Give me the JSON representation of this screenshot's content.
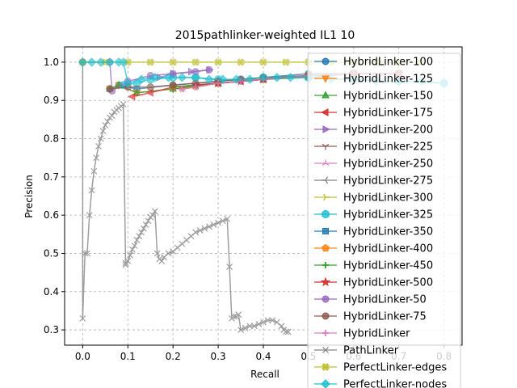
{
  "chart_data": {
    "type": "line",
    "title": "2015pathlinker-weighted IL1 10",
    "xlabel": "Recall",
    "ylabel": "Precision",
    "xlim": [
      -0.04,
      0.84
    ],
    "ylim": [
      0.26,
      1.04
    ],
    "grid": true,
    "legend_position": "right, overlapping plot",
    "x_ticks": [
      "0.0",
      "0.1",
      "0.2",
      "0.3",
      "0.4",
      "0.5",
      "0.6",
      "0.7",
      "0.8"
    ],
    "y_ticks": [
      "0.3",
      "0.4",
      "0.5",
      "0.6",
      "0.7",
      "0.8",
      "0.9",
      "1.0"
    ],
    "series": [
      {
        "name": "HybridLinker-100",
        "color": "#1f77b4",
        "marker": "circle",
        "x": [
          0.06,
          0.08,
          0.12,
          0.2,
          0.3,
          0.4,
          0.5,
          0.6,
          0.7
        ],
        "y": [
          0.93,
          0.94,
          0.93,
          0.94,
          0.95,
          0.96,
          0.97,
          0.97,
          0.97
        ]
      },
      {
        "name": "HybridLinker-125",
        "color": "#ff7f0e",
        "marker": "triangle-down",
        "x": [
          0.06,
          0.08,
          0.12,
          0.2,
          0.3,
          0.4,
          0.5,
          0.6,
          0.7
        ],
        "y": [
          0.93,
          0.94,
          0.92,
          0.93,
          0.945,
          0.955,
          0.965,
          0.97,
          0.97
        ]
      },
      {
        "name": "HybridLinker-150",
        "color": "#2ca02c",
        "marker": "triangle-up",
        "x": [
          0.06,
          0.08,
          0.12,
          0.2,
          0.3,
          0.4,
          0.5,
          0.6,
          0.7
        ],
        "y": [
          0.93,
          0.94,
          0.92,
          0.93,
          0.945,
          0.955,
          0.96,
          0.97,
          0.97
        ]
      },
      {
        "name": "HybridLinker-175",
        "color": "#d62728",
        "marker": "triangle-left",
        "x": [
          0.11,
          0.15,
          0.2,
          0.25,
          0.3,
          0.35,
          0.4,
          0.5,
          0.6,
          0.7
        ],
        "y": [
          0.91,
          0.92,
          0.935,
          0.94,
          0.945,
          0.95,
          0.955,
          0.965,
          0.97,
          0.97
        ]
      },
      {
        "name": "HybridLinker-200",
        "color": "#9467bd",
        "marker": "triangle-right",
        "x": [
          0.17,
          0.2,
          0.24,
          0.28
        ],
        "y": [
          0.96,
          0.97,
          0.975,
          0.98
        ]
      },
      {
        "name": "HybridLinker-225",
        "color": "#8c564b",
        "marker": "tri-down",
        "x": [
          0.2,
          0.25,
          0.3,
          0.35,
          0.4,
          0.5,
          0.6,
          0.7
        ],
        "y": [
          0.93,
          0.935,
          0.945,
          0.95,
          0.955,
          0.965,
          0.97,
          0.97
        ]
      },
      {
        "name": "HybridLinker-250",
        "color": "#e377c2",
        "marker": "tri-up",
        "x": [
          0.22,
          0.25,
          0.3,
          0.35,
          0.4,
          0.5,
          0.6,
          0.7
        ],
        "y": [
          0.93,
          0.935,
          0.945,
          0.95,
          0.955,
          0.965,
          0.97,
          0.97
        ]
      },
      {
        "name": "HybridLinker-275",
        "color": "#7f7f7f",
        "marker": "tri-left",
        "x": [
          0.22,
          0.25,
          0.3,
          0.35,
          0.4,
          0.5,
          0.6,
          0.7
        ],
        "y": [
          0.93,
          0.935,
          0.945,
          0.95,
          0.955,
          0.965,
          0.97,
          0.97
        ]
      },
      {
        "name": "HybridLinker-300",
        "color": "#bcbd22",
        "marker": "tri-right",
        "x": [
          0.22,
          0.25,
          0.3,
          0.35,
          0.4,
          0.5,
          0.6,
          0.7
        ],
        "y": [
          0.93,
          0.935,
          0.945,
          0.95,
          0.955,
          0.965,
          0.97,
          0.97
        ]
      },
      {
        "name": "HybridLinker-325",
        "color": "#17becf",
        "marker": "octagon",
        "x": [
          0.09,
          0.12,
          0.15,
          0.2,
          0.25,
          0.3,
          0.35,
          0.4,
          0.5,
          0.6,
          0.7,
          0.8
        ],
        "y": [
          0.94,
          0.945,
          0.955,
          0.96,
          0.96,
          0.955,
          0.955,
          0.96,
          0.96,
          0.955,
          0.95,
          0.945
        ]
      },
      {
        "name": "HybridLinker-350",
        "color": "#1f77b4",
        "marker": "square",
        "x": [
          0.2,
          0.3,
          0.4,
          0.5,
          0.6,
          0.7
        ],
        "y": [
          0.935,
          0.945,
          0.955,
          0.965,
          0.97,
          0.97
        ]
      },
      {
        "name": "HybridLinker-400",
        "color": "#ff7f0e",
        "marker": "pentagon",
        "x": [
          0.2,
          0.3,
          0.4,
          0.5,
          0.6,
          0.7
        ],
        "y": [
          0.935,
          0.945,
          0.955,
          0.965,
          0.97,
          0.97
        ]
      },
      {
        "name": "HybridLinker-450",
        "color": "#2ca02c",
        "marker": "plus",
        "x": [
          0.2,
          0.3,
          0.4,
          0.5,
          0.6,
          0.7
        ],
        "y": [
          0.935,
          0.945,
          0.955,
          0.965,
          0.97,
          0.97
        ]
      },
      {
        "name": "HybridLinker-500",
        "color": "#d62728",
        "marker": "star",
        "x": [
          0.25,
          0.3,
          0.35,
          0.4,
          0.5,
          0.6,
          0.7
        ],
        "y": [
          0.94,
          0.945,
          0.95,
          0.955,
          0.965,
          0.97,
          0.97
        ]
      },
      {
        "name": "HybridLinker-50",
        "color": "#9467bd",
        "marker": "hexagon",
        "x": [
          0.0,
          0.06,
          0.065,
          0.1,
          0.15,
          0.2,
          0.25,
          0.28
        ],
        "y": [
          1.0,
          1.0,
          0.925,
          0.95,
          0.965,
          0.97,
          0.975,
          0.98
        ]
      },
      {
        "name": "HybridLinker-75",
        "color": "#8c564b",
        "marker": "hexagon",
        "x": [
          0.06,
          0.1,
          0.15,
          0.2,
          0.25,
          0.3,
          0.35,
          0.4,
          0.5,
          0.6,
          0.7
        ],
        "y": [
          0.93,
          0.935,
          0.935,
          0.94,
          0.945,
          0.95,
          0.955,
          0.96,
          0.965,
          0.97,
          0.97
        ]
      },
      {
        "name": "HybridLinker",
        "color": "#e377c2",
        "marker": "plus",
        "x": [
          0.22,
          0.25,
          0.3,
          0.35,
          0.4,
          0.5,
          0.6,
          0.7
        ],
        "y": [
          0.93,
          0.935,
          0.945,
          0.95,
          0.955,
          0.965,
          0.97,
          0.97
        ]
      },
      {
        "name": "PathLinker",
        "color": "#7f7f7f",
        "marker": "x",
        "x": [
          0.0,
          0.0,
          0.005,
          0.01,
          0.015,
          0.02,
          0.025,
          0.03,
          0.035,
          0.04,
          0.045,
          0.05,
          0.055,
          0.06,
          0.065,
          0.07,
          0.075,
          0.08,
          0.085,
          0.09,
          0.095,
          0.095,
          0.1,
          0.105,
          0.11,
          0.115,
          0.12,
          0.125,
          0.13,
          0.135,
          0.14,
          0.145,
          0.15,
          0.155,
          0.16,
          0.165,
          0.17,
          0.175,
          0.18,
          0.19,
          0.2,
          0.21,
          0.22,
          0.23,
          0.24,
          0.25,
          0.26,
          0.27,
          0.28,
          0.29,
          0.3,
          0.31,
          0.32,
          0.325,
          0.33,
          0.335,
          0.34,
          0.345,
          0.35,
          0.36,
          0.37,
          0.38,
          0.39,
          0.4,
          0.41,
          0.42,
          0.43,
          0.44,
          0.445,
          0.45,
          0.455
        ],
        "y": [
          1.0,
          0.33,
          0.5,
          0.5,
          0.6,
          0.665,
          0.715,
          0.75,
          0.78,
          0.8,
          0.82,
          0.835,
          0.845,
          0.855,
          0.86,
          0.87,
          0.875,
          0.88,
          0.885,
          0.89,
          0.47,
          0.475,
          0.48,
          0.495,
          0.51,
          0.52,
          0.535,
          0.545,
          0.555,
          0.565,
          0.575,
          0.585,
          0.595,
          0.6,
          0.61,
          0.5,
          0.485,
          0.48,
          0.49,
          0.5,
          0.505,
          0.515,
          0.525,
          0.535,
          0.545,
          0.555,
          0.56,
          0.565,
          0.57,
          0.575,
          0.58,
          0.585,
          0.59,
          0.465,
          0.33,
          0.335,
          0.335,
          0.34,
          0.3,
          0.305,
          0.31,
          0.31,
          0.315,
          0.32,
          0.325,
          0.325,
          0.32,
          0.31,
          0.3,
          0.295,
          0.295
        ]
      },
      {
        "name": "PerfectLinker-edges",
        "color": "#bcbd22",
        "marker": "x-filled",
        "x": [
          0.0,
          0.05,
          0.1,
          0.15,
          0.2,
          0.25,
          0.3,
          0.35,
          0.4,
          0.45,
          0.5,
          0.55,
          0.6,
          0.65,
          0.7,
          0.75
        ],
        "y": [
          1.0,
          1.0,
          1.0,
          1.0,
          1.0,
          1.0,
          1.0,
          1.0,
          1.0,
          1.0,
          1.0,
          1.0,
          1.0,
          1.0,
          1.0,
          1.0
        ]
      },
      {
        "name": "PerfectLinker-nodes",
        "color": "#17becf",
        "marker": "diamond",
        "x": [
          0.0,
          0.02,
          0.04,
          0.06,
          0.08,
          0.09,
          0.1,
          0.13,
          0.16,
          0.19,
          0.22,
          0.25,
          0.28,
          0.31,
          0.34,
          0.37,
          0.4,
          0.43,
          0.46,
          0.5,
          0.55,
          0.6,
          0.65,
          0.7,
          0.75,
          0.8
        ],
        "y": [
          1.0,
          1.0,
          1.0,
          1.0,
          1.0,
          1.0,
          0.945,
          0.955,
          0.96,
          0.96,
          0.96,
          0.96,
          0.955,
          0.955,
          0.955,
          0.955,
          0.96,
          0.96,
          0.96,
          0.96,
          0.955,
          0.955,
          0.95,
          0.95,
          0.95,
          0.945
        ]
      }
    ]
  }
}
